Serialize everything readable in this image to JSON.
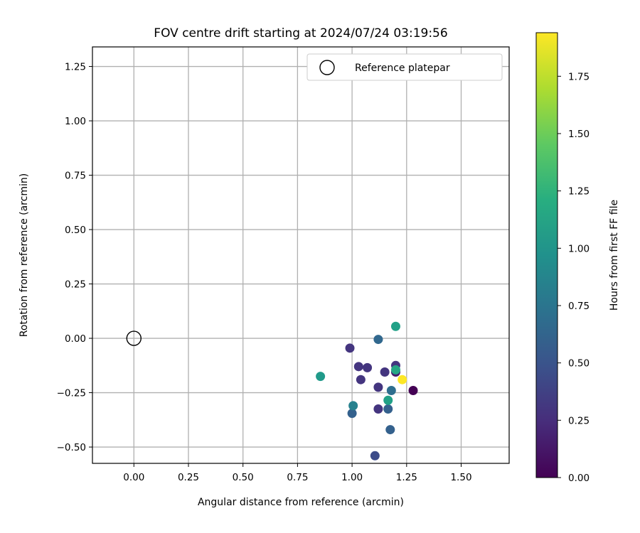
{
  "chart_data": {
    "type": "scatter",
    "title": "FOV centre drift starting at 2024/07/24 03:19:56",
    "xlabel": "Angular distance from reference (arcmin)",
    "ylabel": "Rotation from reference (arcmin)",
    "xlim": [
      -0.19,
      1.72
    ],
    "ylim": [
      -0.575,
      1.34
    ],
    "xticks": [
      0.0,
      0.25,
      0.5,
      0.75,
      1.0,
      1.25,
      1.5
    ],
    "xtick_labels": [
      "0.00",
      "0.25",
      "0.50",
      "0.75",
      "1.00",
      "1.25",
      "1.50"
    ],
    "yticks": [
      -0.5,
      -0.25,
      0.0,
      0.25,
      0.5,
      0.75,
      1.0,
      1.25
    ],
    "ytick_labels": [
      "−0.50",
      "−0.25",
      "0.00",
      "0.25",
      "0.50",
      "0.75",
      "1.00",
      "1.25"
    ],
    "grid": true,
    "legend": {
      "position": "upper-right",
      "entries": [
        "Reference platepar"
      ]
    },
    "reference_point": {
      "x": 0.0,
      "y": 0.0
    },
    "colorbar": {
      "label": "Hours from first FF file",
      "colormap": "viridis",
      "range": [
        0.0,
        1.94
      ],
      "ticks": [
        0.0,
        0.25,
        0.5,
        0.75,
        1.0,
        1.25,
        1.5,
        1.75
      ],
      "tick_labels": [
        "0.00",
        "0.25",
        "0.50",
        "0.75",
        "1.00",
        "1.25",
        "1.50",
        "1.75"
      ]
    },
    "points": [
      {
        "x": 1.28,
        "y": -0.24,
        "hours": 0.0
      },
      {
        "x": 0.99,
        "y": -0.045,
        "hours": 0.3
      },
      {
        "x": 1.03,
        "y": -0.13,
        "hours": 0.3
      },
      {
        "x": 1.04,
        "y": -0.19,
        "hours": 0.3
      },
      {
        "x": 1.07,
        "y": -0.135,
        "hours": 0.3
      },
      {
        "x": 1.12,
        "y": -0.225,
        "hours": 0.3
      },
      {
        "x": 1.12,
        "y": -0.325,
        "hours": 0.3
      },
      {
        "x": 1.15,
        "y": -0.155,
        "hours": 0.3
      },
      {
        "x": 1.2,
        "y": -0.125,
        "hours": 0.3
      },
      {
        "x": 1.2,
        "y": -0.155,
        "hours": 0.15
      },
      {
        "x": 1.105,
        "y": -0.54,
        "hours": 0.45
      },
      {
        "x": 1.0,
        "y": -0.345,
        "hours": 0.6
      },
      {
        "x": 1.165,
        "y": -0.325,
        "hours": 0.6
      },
      {
        "x": 1.175,
        "y": -0.42,
        "hours": 0.6
      },
      {
        "x": 1.12,
        "y": -0.005,
        "hours": 0.65
      },
      {
        "x": 1.18,
        "y": -0.24,
        "hours": 0.7
      },
      {
        "x": 1.005,
        "y": -0.31,
        "hours": 0.85
      },
      {
        "x": 0.855,
        "y": -0.175,
        "hours": 1.05
      },
      {
        "x": 1.165,
        "y": -0.285,
        "hours": 1.1
      },
      {
        "x": 1.2,
        "y": -0.145,
        "hours": 1.15
      },
      {
        "x": 1.2,
        "y": 0.055,
        "hours": 1.1
      },
      {
        "x": 1.23,
        "y": -0.19,
        "hours": 1.94
      }
    ]
  }
}
